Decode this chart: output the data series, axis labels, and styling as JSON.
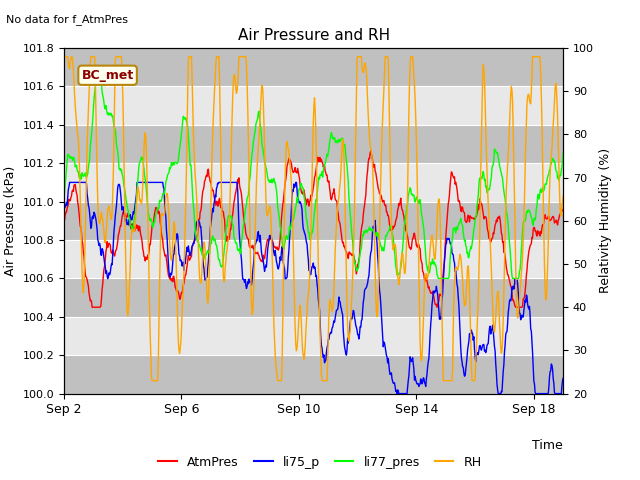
{
  "title": "Air Pressure and RH",
  "no_data_text": "No data for f_AtmPres",
  "station_label": "BC_met",
  "xlabel": "Time",
  "ylabel_left": "Air Pressure (kPa)",
  "ylabel_right": "Relativity Humidity (%)",
  "ylim_left": [
    100.0,
    101.8
  ],
  "ylim_right": [
    20,
    100
  ],
  "yticks_left": [
    100.0,
    100.2,
    100.4,
    100.6,
    100.8,
    101.0,
    101.2,
    101.4,
    101.6,
    101.8
  ],
  "yticks_right": [
    20,
    30,
    40,
    50,
    60,
    70,
    80,
    90,
    100
  ],
  "xtick_positions": [
    0,
    4,
    8,
    12,
    16
  ],
  "xtick_labels": [
    "Sep 2",
    "Sep 6",
    "Sep 10",
    "Sep 14",
    "Sep 18"
  ],
  "legend_entries": [
    "AtmPres",
    "li75_p",
    "li77_pres",
    "RH"
  ],
  "legend_colors": [
    "red",
    "blue",
    "green",
    "orange"
  ],
  "plot_bg_color": "#e8e8e8",
  "band_colors": [
    "#cccccc",
    "#e8e8e8"
  ],
  "n_points": 800
}
